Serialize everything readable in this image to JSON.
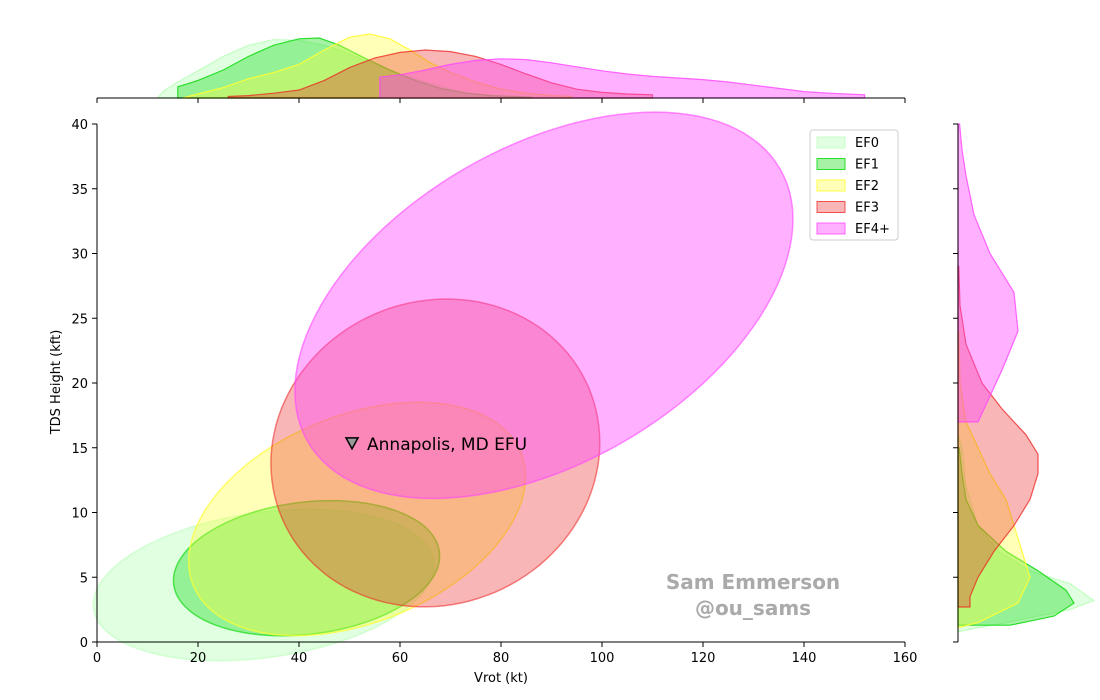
{
  "chart_data": {
    "type": "scatter",
    "xlabel": "Vrot (kt)",
    "ylabel": "TDS Height (kft)",
    "xlim": [
      0,
      160
    ],
    "ylim": [
      0,
      40
    ],
    "x_ticks": [
      "0",
      "20",
      "40",
      "60",
      "80",
      "100",
      "120",
      "140",
      "160"
    ],
    "y_ticks": [
      "0",
      "5",
      "10",
      "15",
      "20",
      "25",
      "30",
      "35",
      "40"
    ],
    "grid": false,
    "legend_position": "top-right",
    "series": [
      {
        "name": "EF0",
        "color": "#aaffaa",
        "fill_opacity": 0.35,
        "edge_opacity": 0.45,
        "ellipse": {
          "cx": 33,
          "cy": 4.4,
          "rx": 34,
          "ry": 5.6,
          "angle_deg": 8
        }
      },
      {
        "name": "EF1",
        "color": "#22dd22",
        "fill_opacity": 0.4,
        "edge_opacity": 0.75,
        "ellipse": {
          "cx": 41.5,
          "cy": 5.7,
          "rx": 26.5,
          "ry": 5.1,
          "angle_deg": 7
        }
      },
      {
        "name": "EF2",
        "color": "#ffff33",
        "fill_opacity": 0.35,
        "edge_opacity": 0.7,
        "ellipse": {
          "cx": 51.5,
          "cy": 9.5,
          "rx": 35,
          "ry": 8,
          "angle_deg": 22
        }
      },
      {
        "name": "EF3",
        "color": "#ee2222",
        "fill_opacity": 0.33,
        "edge_opacity": 0.55,
        "ellipse": {
          "cx": 67,
          "cy": 14.6,
          "rx": 33,
          "ry": 11.7,
          "angle_deg": 23
        }
      },
      {
        "name": "EF4+",
        "color": "#ff44ff",
        "fill_opacity": 0.42,
        "edge_opacity": 0.6,
        "ellipse": {
          "cx": 88.5,
          "cy": 26,
          "rx": 54,
          "ry": 12.2,
          "angle_deg": 30
        }
      }
    ],
    "marginals": {
      "x": [
        {
          "name": "EF0",
          "points": [
            [
              12,
              0
            ],
            [
              13,
              0.08
            ],
            [
              16,
              0.2
            ],
            [
              20,
              0.34
            ],
            [
              25,
              0.52
            ],
            [
              30,
              0.66
            ],
            [
              35,
              0.73
            ],
            [
              40,
              0.72
            ],
            [
              45,
              0.66
            ],
            [
              50,
              0.55
            ],
            [
              55,
              0.42
            ],
            [
              60,
              0.3
            ],
            [
              65,
              0.2
            ],
            [
              70,
              0.11
            ],
            [
              75,
              0.05
            ],
            [
              80,
              0.02
            ],
            [
              86,
              0.0
            ]
          ]
        },
        {
          "name": "EF1",
          "points": [
            [
              16,
              0
            ],
            [
              16,
              0.14
            ],
            [
              20,
              0.22
            ],
            [
              25,
              0.35
            ],
            [
              30,
              0.52
            ],
            [
              35,
              0.66
            ],
            [
              40,
              0.74
            ],
            [
              44,
              0.75
            ],
            [
              48,
              0.66
            ],
            [
              53,
              0.5
            ],
            [
              58,
              0.35
            ],
            [
              63,
              0.22
            ],
            [
              68,
              0.12
            ],
            [
              73,
              0.06
            ],
            [
              78,
              0.03
            ],
            [
              86,
              0.01
            ],
            [
              86,
              0
            ]
          ]
        },
        {
          "name": "EF2",
          "points": [
            [
              17,
              0
            ],
            [
              20,
              0.05
            ],
            [
              25,
              0.13
            ],
            [
              30,
              0.24
            ],
            [
              35,
              0.32
            ],
            [
              40,
              0.42
            ],
            [
              45,
              0.6
            ],
            [
              50,
              0.76
            ],
            [
              54,
              0.8
            ],
            [
              58,
              0.74
            ],
            [
              62,
              0.6
            ],
            [
              66,
              0.44
            ],
            [
              70,
              0.32
            ],
            [
              75,
              0.2
            ],
            [
              80,
              0.11
            ],
            [
              85,
              0.06
            ],
            [
              90,
              0.03
            ],
            [
              94,
              0.02
            ],
            [
              94,
              0
            ]
          ]
        },
        {
          "name": "EF3",
          "points": [
            [
              26,
              0
            ],
            [
              26,
              0.02
            ],
            [
              30,
              0.03
            ],
            [
              35,
              0.06
            ],
            [
              40,
              0.1
            ],
            [
              45,
              0.22
            ],
            [
              50,
              0.38
            ],
            [
              55,
              0.5
            ],
            [
              60,
              0.57
            ],
            [
              65,
              0.6
            ],
            [
              70,
              0.58
            ],
            [
              75,
              0.52
            ],
            [
              80,
              0.42
            ],
            [
              85,
              0.3
            ],
            [
              90,
              0.19
            ],
            [
              95,
              0.11
            ],
            [
              100,
              0.07
            ],
            [
              105,
              0.05
            ],
            [
              110,
              0.04
            ],
            [
              110,
              0
            ]
          ]
        },
        {
          "name": "EF4+",
          "points": [
            [
              56,
              0
            ],
            [
              56,
              0.26
            ],
            [
              60,
              0.29
            ],
            [
              65,
              0.35
            ],
            [
              70,
              0.42
            ],
            [
              75,
              0.47
            ],
            [
              80,
              0.49
            ],
            [
              85,
              0.48
            ],
            [
              90,
              0.44
            ],
            [
              95,
              0.39
            ],
            [
              100,
              0.34
            ],
            [
              105,
              0.3
            ],
            [
              110,
              0.27
            ],
            [
              115,
              0.25
            ],
            [
              120,
              0.23
            ],
            [
              125,
              0.2
            ],
            [
              130,
              0.16
            ],
            [
              135,
              0.12
            ],
            [
              140,
              0.08
            ],
            [
              145,
              0.06
            ],
            [
              152,
              0.04
            ],
            [
              152,
              0
            ]
          ]
        }
      ],
      "y": [
        {
          "name": "EF0",
          "points": [
            [
              0.8,
              0
            ],
            [
              1.5,
              0.12
            ],
            [
              2.5,
              0.28
            ],
            [
              3.2,
              0.34
            ],
            [
              4.5,
              0.28
            ],
            [
              5.5,
              0.18
            ],
            [
              7,
              0.1
            ],
            [
              9,
              0.05
            ],
            [
              12,
              0.02
            ],
            [
              15,
              0.01
            ],
            [
              16,
              0
            ]
          ]
        },
        {
          "name": "EF1",
          "points": [
            [
              1.3,
              0
            ],
            [
              1.3,
              0.13
            ],
            [
              2,
              0.24
            ],
            [
              3,
              0.29
            ],
            [
              4,
              0.27
            ],
            [
              5.5,
              0.2
            ],
            [
              7,
              0.12
            ],
            [
              9,
              0.05
            ],
            [
              11,
              0.02
            ],
            [
              13,
              0.01
            ],
            [
              15,
              0.003
            ],
            [
              15,
              0
            ]
          ]
        },
        {
          "name": "EF2",
          "points": [
            [
              1.1,
              0
            ],
            [
              1.5,
              0.05
            ],
            [
              3,
              0.15
            ],
            [
              5,
              0.18
            ],
            [
              7,
              0.16
            ],
            [
              9,
              0.14
            ],
            [
              11,
              0.12
            ],
            [
              13,
              0.08
            ],
            [
              15,
              0.05
            ],
            [
              17,
              0.02
            ],
            [
              20,
              0.005
            ],
            [
              24,
              0.002
            ],
            [
              24,
              0
            ]
          ]
        },
        {
          "name": "EF3",
          "points": [
            [
              2.7,
              0
            ],
            [
              2.7,
              0.03
            ],
            [
              3.5,
              0.03
            ],
            [
              5,
              0.05
            ],
            [
              7,
              0.09
            ],
            [
              9,
              0.14
            ],
            [
              11,
              0.18
            ],
            [
              13,
              0.2
            ],
            [
              14.5,
              0.2
            ],
            [
              16,
              0.17
            ],
            [
              18,
              0.11
            ],
            [
              20,
              0.06
            ],
            [
              23,
              0.02
            ],
            [
              26,
              0.005
            ],
            [
              29,
              0.002
            ],
            [
              29,
              0
            ]
          ]
        },
        {
          "name": "EF4+",
          "points": [
            [
              17,
              0
            ],
            [
              17,
              0.05
            ],
            [
              19,
              0.08
            ],
            [
              21,
              0.11
            ],
            [
              24,
              0.15
            ],
            [
              27,
              0.14
            ],
            [
              30,
              0.08
            ],
            [
              33,
              0.04
            ],
            [
              36,
              0.02
            ],
            [
              38,
              0.01
            ],
            [
              40,
              0.004
            ],
            [
              40,
              0
            ]
          ]
        }
      ]
    },
    "annotations": [
      {
        "text": "Annapolis, MD EFU",
        "x": 50.5,
        "y": 15.3,
        "marker": "triangle-down"
      }
    ],
    "watermark": [
      "Sam Emmerson",
      "@ou_sams"
    ]
  }
}
